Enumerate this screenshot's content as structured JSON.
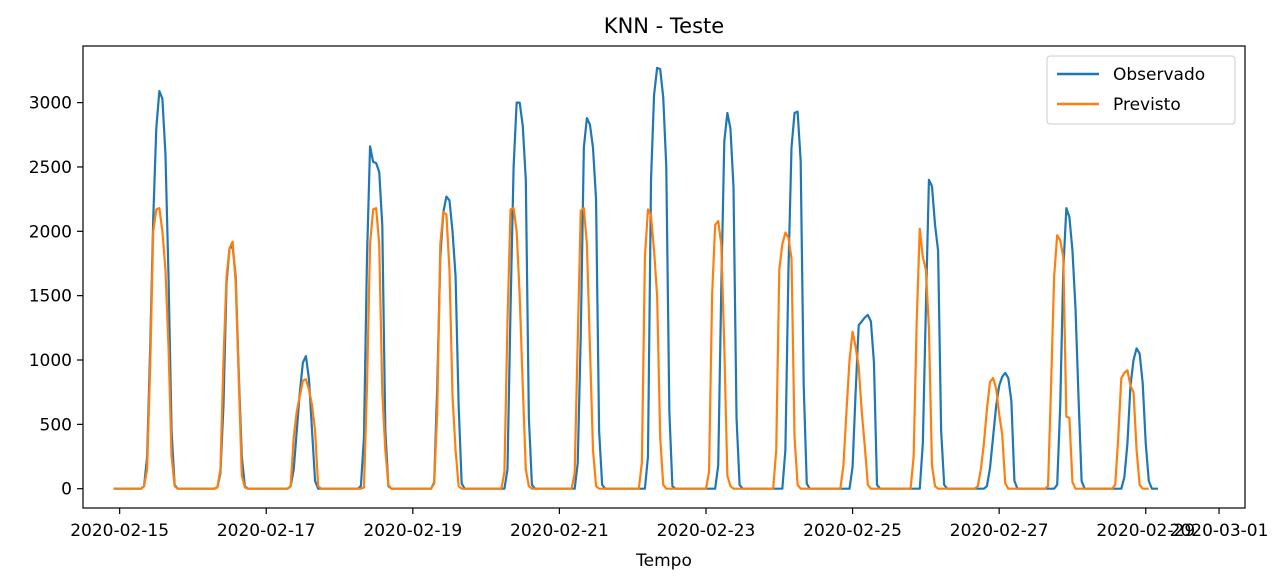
{
  "chart_data": {
    "type": "line",
    "title": "KNN - Teste",
    "xlabel": "Tempo",
    "ylabel": "",
    "x_start": "2020-02-14 22:00",
    "x_end": "2020-02-29 22:00",
    "xlim": [
      "2020-02-14 12:00",
      "2020-03-01 08:30"
    ],
    "ylim": [
      -150,
      3440
    ],
    "x_ticks": [
      "2020-02-15",
      "2020-02-17",
      "2020-02-19",
      "2020-02-21",
      "2020-02-23",
      "2020-02-25",
      "2020-02-27",
      "2020-02-29",
      "2020-03-01"
    ],
    "y_ticks": [
      0,
      500,
      1000,
      1500,
      2000,
      2500,
      3000
    ],
    "grid": false,
    "legend_position": "top-right",
    "series": [
      {
        "name": "Observado",
        "color": "#1f77b4",
        "values": [
          0,
          0,
          0,
          0,
          0,
          0,
          0,
          0,
          0,
          0,
          20,
          250,
          1100,
          2100,
          2800,
          3090,
          3030,
          2600,
          1650,
          450,
          30,
          0,
          0,
          0,
          0,
          0,
          0,
          0,
          0,
          0,
          0,
          0,
          0,
          0,
          10,
          120,
          650,
          1600,
          1870,
          1880,
          1650,
          900,
          250,
          20,
          0,
          0,
          0,
          0,
          0,
          0,
          0,
          0,
          0,
          0,
          0,
          0,
          0,
          0,
          20,
          150,
          450,
          750,
          980,
          1030,
          850,
          450,
          60,
          0,
          0,
          0,
          0,
          0,
          0,
          0,
          0,
          0,
          0,
          0,
          0,
          0,
          0,
          20,
          400,
          1800,
          2660,
          2540,
          2530,
          2460,
          2050,
          450,
          20,
          0,
          0,
          0,
          0,
          0,
          0,
          0,
          0,
          0,
          0,
          0,
          0,
          0,
          0,
          50,
          800,
          1800,
          2150,
          2270,
          2240,
          2000,
          1650,
          650,
          40,
          0,
          0,
          0,
          0,
          0,
          0,
          0,
          0,
          0,
          0,
          0,
          0,
          0,
          0,
          150,
          1400,
          2500,
          3000,
          3000,
          2820,
          2400,
          550,
          30,
          0,
          0,
          0,
          0,
          0,
          0,
          0,
          0,
          0,
          0,
          0,
          0,
          0,
          0,
          200,
          1200,
          2650,
          2880,
          2830,
          2650,
          2250,
          450,
          30,
          0,
          0,
          0,
          0,
          0,
          0,
          0,
          0,
          0,
          0,
          0,
          0,
          0,
          0,
          250,
          2400,
          3060,
          3270,
          3260,
          3040,
          2500,
          600,
          20,
          0,
          0,
          0,
          0,
          0,
          0,
          0,
          0,
          0,
          0,
          0,
          0,
          0,
          0,
          180,
          1550,
          2700,
          2920,
          2800,
          2350,
          550,
          30,
          0,
          0,
          0,
          0,
          0,
          0,
          0,
          0,
          0,
          0,
          0,
          0,
          0,
          0,
          300,
          1700,
          2650,
          2920,
          2930,
          2550,
          800,
          40,
          0,
          0,
          0,
          0,
          0,
          0,
          0,
          0,
          0,
          0,
          0,
          0,
          0,
          0,
          170,
          750,
          1270,
          1300,
          1330,
          1350,
          1300,
          980,
          30,
          0,
          0,
          0,
          0,
          0,
          0,
          0,
          0,
          0,
          0,
          0,
          0,
          0,
          0,
          350,
          1400,
          2400,
          2350,
          2050,
          1850,
          450,
          30,
          0,
          0,
          0,
          0,
          0,
          0,
          0,
          0,
          0,
          0,
          0,
          0,
          0,
          20,
          160,
          400,
          640,
          800,
          870,
          900,
          860,
          680,
          60,
          0,
          0,
          0,
          0,
          0,
          0,
          0,
          0,
          0,
          0,
          0,
          0,
          0,
          30,
          650,
          1700,
          2180,
          2110,
          1850,
          1400,
          700,
          60,
          0,
          0,
          0,
          0,
          0,
          0,
          0,
          0,
          0,
          0,
          0,
          0,
          0,
          90,
          350,
          800,
          1000,
          1090,
          1050,
          820,
          350,
          60,
          0,
          0,
          0
        ]
      },
      {
        "name": "Previsto",
        "color": "#ff7f0e",
        "values": [
          0,
          0,
          0,
          0,
          0,
          0,
          0,
          0,
          0,
          0,
          20,
          150,
          950,
          2000,
          2170,
          2180,
          2000,
          1700,
          1100,
          250,
          20,
          0,
          0,
          0,
          0,
          0,
          0,
          0,
          0,
          0,
          0,
          0,
          0,
          0,
          10,
          150,
          1000,
          1650,
          1870,
          1920,
          1600,
          850,
          100,
          10,
          0,
          0,
          0,
          0,
          0,
          0,
          0,
          0,
          0,
          0,
          0,
          0,
          0,
          0,
          20,
          400,
          600,
          720,
          840,
          850,
          770,
          650,
          450,
          20,
          0,
          0,
          0,
          0,
          0,
          0,
          0,
          0,
          0,
          0,
          0,
          0,
          0,
          0,
          10,
          800,
          1900,
          2170,
          2180,
          1900,
          750,
          300,
          30,
          0,
          0,
          0,
          0,
          0,
          0,
          0,
          0,
          0,
          0,
          0,
          0,
          0,
          0,
          40,
          600,
          1900,
          2150,
          2130,
          1700,
          720,
          300,
          20,
          0,
          0,
          0,
          0,
          0,
          0,
          0,
          0,
          0,
          0,
          0,
          0,
          0,
          0,
          130,
          1300,
          2170,
          2180,
          2000,
          1500,
          800,
          150,
          20,
          0,
          0,
          0,
          0,
          0,
          0,
          0,
          0,
          0,
          0,
          0,
          0,
          0,
          0,
          120,
          1150,
          2160,
          2180,
          1900,
          1100,
          300,
          20,
          0,
          0,
          0,
          0,
          0,
          0,
          0,
          0,
          0,
          0,
          0,
          0,
          0,
          0,
          200,
          1800,
          2170,
          2120,
          1850,
          1500,
          400,
          30,
          0,
          0,
          0,
          0,
          0,
          0,
          0,
          0,
          0,
          0,
          0,
          0,
          0,
          0,
          130,
          1500,
          2050,
          2080,
          1900,
          1100,
          100,
          20,
          0,
          0,
          0,
          0,
          0,
          0,
          0,
          0,
          0,
          0,
          0,
          0,
          0,
          0,
          300,
          1700,
          1900,
          1990,
          1950,
          1790,
          400,
          30,
          0,
          0,
          0,
          0,
          0,
          0,
          0,
          0,
          0,
          0,
          0,
          0,
          0,
          0,
          180,
          600,
          1000,
          1220,
          1100,
          950,
          600,
          330,
          30,
          0,
          0,
          0,
          0,
          0,
          0,
          0,
          0,
          0,
          0,
          0,
          0,
          0,
          0,
          250,
          1300,
          2020,
          1800,
          1700,
          1250,
          180,
          20,
          0,
          0,
          0,
          0,
          0,
          0,
          0,
          0,
          0,
          0,
          0,
          0,
          0,
          20,
          150,
          350,
          620,
          830,
          860,
          780,
          580,
          420,
          40,
          0,
          0,
          0,
          0,
          0,
          0,
          0,
          0,
          0,
          0,
          0,
          0,
          0,
          20,
          800,
          1650,
          1970,
          1930,
          1800,
          560,
          550,
          50,
          0,
          0,
          0,
          0,
          0,
          0,
          0,
          0,
          0,
          0,
          0,
          0,
          0,
          30,
          400,
          860,
          900,
          920,
          800,
          750,
          300,
          30,
          0,
          0,
          0
        ]
      }
    ]
  }
}
